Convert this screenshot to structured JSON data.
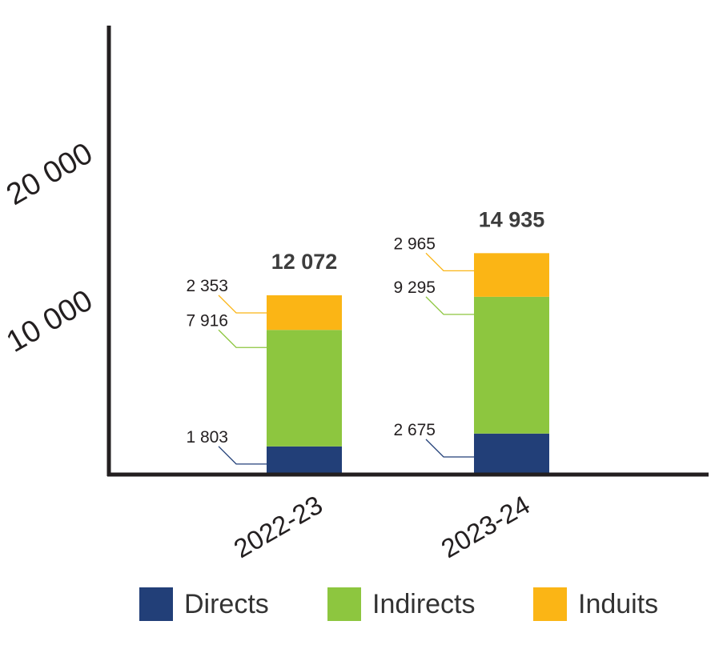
{
  "chart_data": {
    "type": "bar",
    "stacked": true,
    "categories": [
      "2022-23",
      "2023-24"
    ],
    "series": [
      {
        "name": "Directs",
        "values": [
          1803,
          2675
        ],
        "labels": [
          "1 803",
          "2 675"
        ],
        "color": "#223f78"
      },
      {
        "name": "Indirects",
        "values": [
          7916,
          9295
        ],
        "labels": [
          "7 916",
          "9 295"
        ],
        "color": "#8dc63f"
      },
      {
        "name": "Induits",
        "values": [
          2353,
          2965
        ],
        "labels": [
          "2 353",
          "2 965"
        ],
        "color": "#fbb515"
      }
    ],
    "totals": [
      12072,
      14935
    ],
    "total_labels": [
      "12 072",
      "14 935"
    ],
    "y_ticks": [
      10000,
      20000
    ],
    "y_tick_labels": [
      "10 000",
      "20 000"
    ],
    "ylim": [
      0,
      25000
    ],
    "grid": false,
    "legend_position": "bottom",
    "title": "",
    "xlabel": "",
    "ylabel": ""
  }
}
